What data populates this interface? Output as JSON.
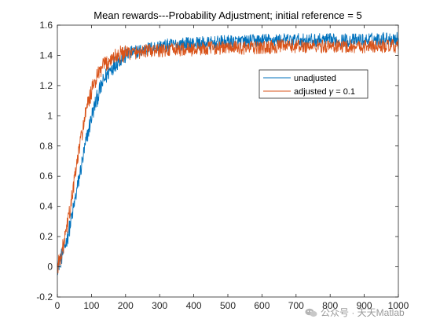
{
  "chart_data": {
    "type": "line",
    "title": "Mean rewards---Probability Adjustment; initial reference = 5",
    "xlabel": "",
    "ylabel": "",
    "xlim": [
      0,
      1000
    ],
    "ylim": [
      -0.2,
      1.6
    ],
    "x_ticks": [
      "0",
      "100",
      "200",
      "300",
      "400",
      "500",
      "600",
      "700",
      "800",
      "900",
      "1000"
    ],
    "y_ticks": [
      "-0.2",
      "0",
      "0.2",
      "0.4",
      "0.6",
      "0.8",
      "1",
      "1.2",
      "1.4",
      "1.6"
    ],
    "grid": false,
    "legend_position": "upper-right",
    "series": [
      {
        "name": "unadjusted",
        "color": "#0072BD",
        "x": [
          0,
          10,
          20,
          30,
          40,
          50,
          60,
          70,
          80,
          90,
          100,
          110,
          120,
          130,
          140,
          150,
          160,
          170,
          180,
          190,
          200,
          220,
          240,
          260,
          280,
          300,
          350,
          400,
          450,
          500,
          550,
          600,
          650,
          700,
          750,
          800,
          850,
          900,
          950,
          1000
        ],
        "values": [
          0.0,
          0.05,
          0.12,
          0.2,
          0.3,
          0.42,
          0.54,
          0.66,
          0.78,
          0.89,
          0.99,
          1.07,
          1.14,
          1.2,
          1.25,
          1.29,
          1.32,
          1.35,
          1.37,
          1.39,
          1.4,
          1.42,
          1.43,
          1.44,
          1.45,
          1.46,
          1.47,
          1.48,
          1.48,
          1.49,
          1.49,
          1.5,
          1.5,
          1.5,
          1.5,
          1.5,
          1.5,
          1.5,
          1.51,
          1.51
        ]
      },
      {
        "name": "adjusted γ = 0.1",
        "color": "#D95319",
        "x": [
          0,
          10,
          20,
          30,
          40,
          50,
          60,
          70,
          80,
          90,
          100,
          110,
          120,
          130,
          140,
          150,
          160,
          170,
          180,
          190,
          200,
          220,
          240,
          260,
          280,
          300,
          350,
          400,
          450,
          500,
          550,
          600,
          650,
          700,
          750,
          800,
          850,
          900,
          950,
          1000
        ],
        "values": [
          0.0,
          0.07,
          0.16,
          0.28,
          0.42,
          0.57,
          0.72,
          0.86,
          0.98,
          1.08,
          1.16,
          1.22,
          1.27,
          1.31,
          1.34,
          1.36,
          1.38,
          1.39,
          1.4,
          1.41,
          1.41,
          1.42,
          1.42,
          1.43,
          1.43,
          1.43,
          1.44,
          1.44,
          1.45,
          1.45,
          1.45,
          1.45,
          1.46,
          1.46,
          1.46,
          1.46,
          1.46,
          1.46,
          1.46,
          1.46
        ]
      }
    ],
    "legend": {
      "entries": [
        {
          "label": "unadjusted",
          "color": "#0072BD"
        },
        {
          "label_prefix": "adjusted ",
          "label_symbol": "γ",
          "label_suffix": " = 0.1",
          "color": "#D95319"
        }
      ]
    }
  },
  "watermark": {
    "text": "公众号 · 天天Matlab",
    "icon": "wechat-icon"
  }
}
